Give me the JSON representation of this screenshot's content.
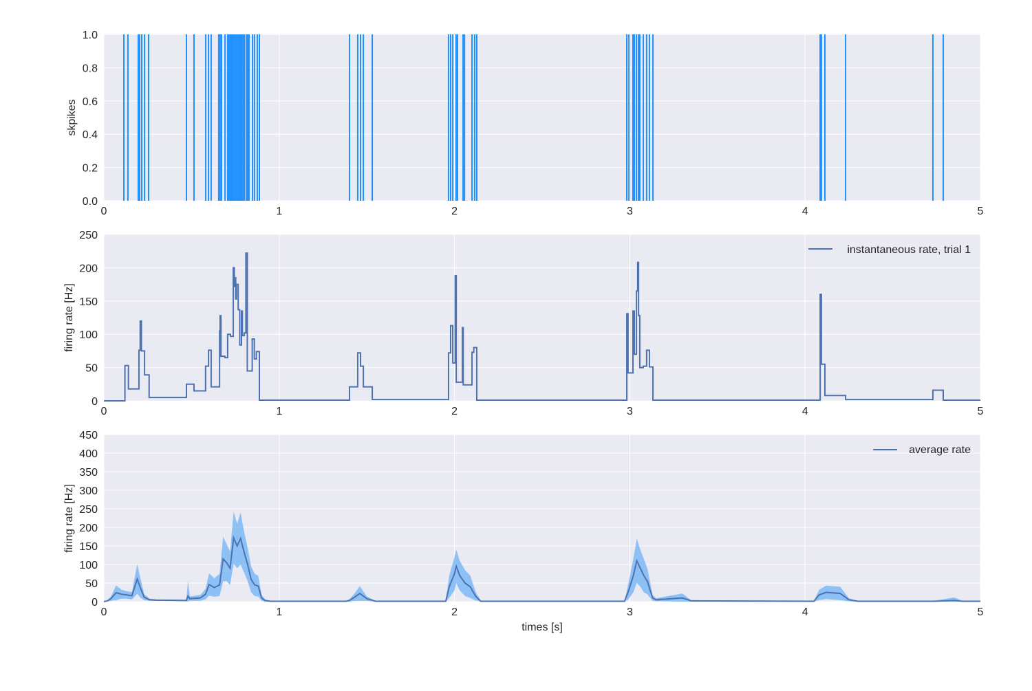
{
  "colors": {
    "background": "#EAEAF2",
    "grid": "#FFFFFF",
    "spikes": "#1E90FF",
    "line": "#4C72B0",
    "band": "#7DB9F5"
  },
  "chart_data": [
    {
      "type": "spike-raster",
      "ylabel": "skpikes",
      "xlim": [
        0,
        5
      ],
      "ylim": [
        0,
        1
      ],
      "xticks": [
        "0",
        "1",
        "2",
        "3",
        "4",
        "5"
      ],
      "yticks": [
        "0.0",
        "0.2",
        "0.4",
        "0.6",
        "0.8",
        "1.0"
      ],
      "grid": true,
      "spike_times": [
        0.114,
        0.137,
        0.196,
        0.204,
        0.216,
        0.232,
        0.255,
        0.471,
        0.514,
        0.581,
        0.597,
        0.612,
        0.655,
        0.663,
        0.671,
        0.691,
        0.706,
        0.714,
        0.722,
        0.73,
        0.738,
        0.746,
        0.754,
        0.761,
        0.769,
        0.777,
        0.785,
        0.793,
        0.801,
        0.812,
        0.82,
        0.828,
        0.848,
        0.859,
        0.875,
        0.887,
        1.401,
        1.448,
        1.464,
        1.48,
        1.531,
        1.966,
        1.978,
        1.99,
        2.009,
        2.017,
        2.049,
        2.057,
        2.1,
        2.115,
        2.127,
        2.983,
        2.995,
        3.018,
        3.026,
        3.038,
        3.049,
        3.057,
        3.077,
        3.096,
        3.112,
        3.132,
        4.086,
        4.093,
        4.113,
        4.231,
        4.729,
        4.788
      ]
    },
    {
      "type": "line",
      "step": true,
      "ylabel": "firing rate [Hz]",
      "xlim": [
        0,
        5
      ],
      "ylim": [
        0,
        250
      ],
      "xticks": [
        "0",
        "1",
        "2",
        "3",
        "4",
        "5"
      ],
      "yticks": [
        "0",
        "50",
        "100",
        "150",
        "200",
        "250"
      ],
      "grid": true,
      "legend": "top-right",
      "series": [
        {
          "name": "instantaneous rate, trial 1",
          "points": [
            [
              0,
              0
            ],
            [
              0.12,
              53
            ],
            [
              0.14,
              18
            ],
            [
              0.2,
              76
            ],
            [
              0.207,
              120
            ],
            [
              0.214,
              75
            ],
            [
              0.232,
              39
            ],
            [
              0.258,
              5
            ],
            [
              0.471,
              25
            ],
            [
              0.514,
              15
            ],
            [
              0.58,
              52
            ],
            [
              0.597,
              76
            ],
            [
              0.612,
              21
            ],
            [
              0.66,
              105
            ],
            [
              0.663,
              128
            ],
            [
              0.668,
              67
            ],
            [
              0.69,
              65
            ],
            [
              0.706,
              100
            ],
            [
              0.722,
              97
            ],
            [
              0.738,
              200
            ],
            [
              0.744,
              172
            ],
            [
              0.748,
              185
            ],
            [
              0.752,
              153
            ],
            [
              0.756,
              175
            ],
            [
              0.766,
              137
            ],
            [
              0.775,
              84
            ],
            [
              0.785,
              135
            ],
            [
              0.79,
              98
            ],
            [
              0.801,
              102
            ],
            [
              0.81,
              222
            ],
            [
              0.818,
              45
            ],
            [
              0.846,
              93
            ],
            [
              0.858,
              63
            ],
            [
              0.87,
              74
            ],
            [
              0.887,
              1
            ],
            [
              1.401,
              21
            ],
            [
              1.448,
              72
            ],
            [
              1.464,
              52
            ],
            [
              1.48,
              21
            ],
            [
              1.531,
              2
            ],
            [
              1.966,
              72
            ],
            [
              1.978,
              113
            ],
            [
              1.99,
              57
            ],
            [
              2.004,
              188
            ],
            [
              2.01,
              28
            ],
            [
              2.045,
              110
            ],
            [
              2.05,
              24
            ],
            [
              2.1,
              73
            ],
            [
              2.11,
              80
            ],
            [
              2.127,
              1
            ],
            [
              2.983,
              131
            ],
            [
              2.99,
              42
            ],
            [
              3.018,
              135
            ],
            [
              3.026,
              70
            ],
            [
              3.038,
              165
            ],
            [
              3.045,
              208
            ],
            [
              3.05,
              128
            ],
            [
              3.057,
              50
            ],
            [
              3.077,
              52
            ],
            [
              3.096,
              76
            ],
            [
              3.112,
              51
            ],
            [
              3.132,
              1
            ],
            [
              4.086,
              160
            ],
            [
              4.093,
              55
            ],
            [
              4.113,
              8
            ],
            [
              4.231,
              2
            ],
            [
              4.729,
              16
            ],
            [
              4.788,
              1
            ],
            [
              5,
              1
            ]
          ]
        }
      ]
    },
    {
      "type": "area",
      "xlabel": "times [s]",
      "ylabel": "firing rate [Hz]",
      "xlim": [
        0,
        5
      ],
      "ylim": [
        0,
        450
      ],
      "xticks": [
        "0",
        "1",
        "2",
        "3",
        "4",
        "5"
      ],
      "yticks": [
        "0",
        "50",
        "100",
        "150",
        "200",
        "250",
        "300",
        "350",
        "400",
        "450"
      ],
      "grid": true,
      "legend": "top-right",
      "series": [
        {
          "name": "average rate",
          "points": [
            [
              0,
              0,
              0
            ],
            [
              0.02,
              2,
              2
            ],
            [
              0.04,
              8,
              6
            ],
            [
              0.07,
              24,
              20
            ],
            [
              0.1,
              20,
              12
            ],
            [
              0.13,
              18,
              10
            ],
            [
              0.16,
              16,
              10
            ],
            [
              0.19,
              61,
              40
            ],
            [
              0.21,
              35,
              25
            ],
            [
              0.23,
              12,
              8
            ],
            [
              0.26,
              5,
              3
            ],
            [
              0.3,
              4,
              2
            ],
            [
              0.47,
              3,
              2
            ],
            [
              0.48,
              15,
              40
            ],
            [
              0.49,
              8,
              6
            ],
            [
              0.55,
              10,
              8
            ],
            [
              0.58,
              20,
              14
            ],
            [
              0.6,
              46,
              30
            ],
            [
              0.63,
              38,
              25
            ],
            [
              0.66,
              45,
              30
            ],
            [
              0.68,
              115,
              60
            ],
            [
              0.7,
              105,
              50
            ],
            [
              0.72,
              90,
              45
            ],
            [
              0.74,
              172,
              70
            ],
            [
              0.76,
              150,
              60
            ],
            [
              0.78,
              170,
              70
            ],
            [
              0.8,
              133,
              55
            ],
            [
              0.82,
              100,
              45
            ],
            [
              0.84,
              60,
              35
            ],
            [
              0.86,
              45,
              30
            ],
            [
              0.88,
              42,
              28
            ],
            [
              0.9,
              10,
              8
            ],
            [
              0.92,
              3,
              3
            ],
            [
              0.95,
              1,
              1
            ],
            [
              1.38,
              1,
              1
            ],
            [
              1.4,
              3,
              3
            ],
            [
              1.43,
              12,
              10
            ],
            [
              1.46,
              22,
              20
            ],
            [
              1.5,
              8,
              6
            ],
            [
              1.55,
              1,
              1
            ],
            [
              1.95,
              1,
              1
            ],
            [
              1.97,
              40,
              30
            ],
            [
              2.0,
              75,
              45
            ],
            [
              2.01,
              95,
              45
            ],
            [
              2.03,
              70,
              40
            ],
            [
              2.06,
              50,
              35
            ],
            [
              2.09,
              40,
              30
            ],
            [
              2.12,
              15,
              12
            ],
            [
              2.15,
              1,
              1
            ],
            [
              2.97,
              1,
              1
            ],
            [
              2.99,
              25,
              20
            ],
            [
              3.02,
              70,
              45
            ],
            [
              3.04,
              110,
              60
            ],
            [
              3.06,
              90,
              50
            ],
            [
              3.08,
              70,
              45
            ],
            [
              3.1,
              55,
              35
            ],
            [
              3.13,
              10,
              8
            ],
            [
              3.15,
              5,
              4
            ],
            [
              3.3,
              10,
              12
            ],
            [
              3.35,
              2,
              2
            ],
            [
              4.05,
              1,
              1
            ],
            [
              4.08,
              18,
              14
            ],
            [
              4.12,
              25,
              18
            ],
            [
              4.2,
              22,
              18
            ],
            [
              4.25,
              5,
              4
            ],
            [
              4.3,
              1,
              1
            ],
            [
              4.73,
              1,
              1
            ],
            [
              4.85,
              3,
              8
            ],
            [
              4.9,
              1,
              1
            ],
            [
              5,
              1,
              1
            ]
          ]
        }
      ]
    }
  ]
}
